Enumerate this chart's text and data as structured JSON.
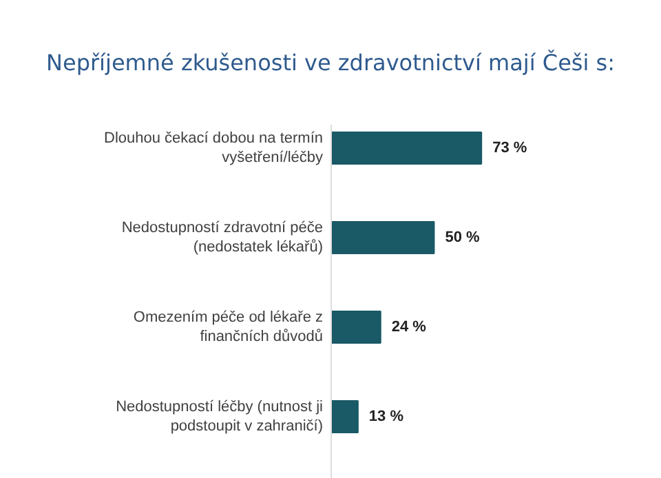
{
  "chart_data": {
    "type": "bar",
    "orientation": "horizontal",
    "title": "Nepříjemné zkušenosti ve zdravotnictví mají Češi s:",
    "categories": [
      "Dlouhou čekací dobou na termín vyšetření/léčby",
      "Nedostupností zdravotní péče (nedostatek lékařů)",
      "Omezením péče od lékaře z finančních důvodů",
      "Nedostupností léčby (nutnost ji podstoupit v zahraničí)"
    ],
    "values": [
      73,
      50,
      24,
      13
    ],
    "color": "#1a5966",
    "value_labels": [
      "73 %",
      "50 %",
      "24 %",
      "13 %"
    ]
  }
}
